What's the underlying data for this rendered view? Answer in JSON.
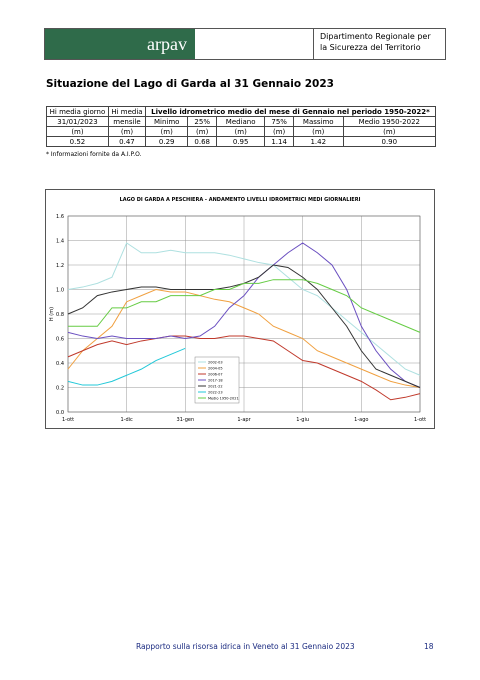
{
  "header": {
    "logo_text": "arpav",
    "department_lines": [
      "Dipartimento Regionale per",
      "la Sicurezza del Territorio"
    ]
  },
  "title": "Situazione del Lago di Garda al 31 Gennaio 2023",
  "table": {
    "rows": [
      [
        "Hi media giorno",
        "Hi media",
        "Livello idrometrico medio del mese di Gennaio nel periodo 1950-2022*"
      ],
      [
        "31/01/2023",
        "mensile",
        "Minimo",
        "25%",
        "Mediano",
        "75%",
        "Massimo",
        "Medio 1950-2022"
      ],
      [
        "(m)",
        "(m)",
        "(m)",
        "(m)",
        "(m)",
        "(m)",
        "(m)",
        "(m)"
      ],
      [
        "0.52",
        "0.47",
        "0.29",
        "0.68",
        "0.95",
        "1.14",
        "1.42",
        "0.90"
      ]
    ]
  },
  "footnote": "* Informazioni fornite da A.I.P.O.",
  "chart_data": {
    "type": "line",
    "title": "LAGO DI GARDA A PESCHIERA - ANDAMENTO LIVELLI IDROMETRICI MEDI GIORNALIERI",
    "ylabel": "H (m)",
    "categories": [
      "1-ott",
      null,
      null,
      null,
      "1-dic",
      null,
      null,
      null,
      "31-gen",
      null,
      null,
      null,
      "1-apr",
      null,
      null,
      null,
      "1-giu",
      null,
      null,
      null,
      "1-ago",
      null,
      null,
      null,
      "1-ott"
    ],
    "ylim": [
      0,
      1.6
    ],
    "yticks": [
      {
        "value": 0,
        "label": "0.0"
      },
      0.2,
      0.4,
      0.6,
      0.8,
      {
        "value": 1,
        "label": "1.0"
      },
      1.2,
      1.4,
      1.6
    ],
    "grid": true,
    "series": [
      {
        "name": "2002-03",
        "color": "#aee0e0",
        "values": [
          1.0,
          1.02,
          1.05,
          1.1,
          1.38,
          1.3,
          1.3,
          1.32,
          1.3,
          1.3,
          1.3,
          1.28,
          1.25,
          1.22,
          1.2,
          1.1,
          1.0,
          0.95,
          0.85,
          0.75,
          0.65,
          0.55,
          0.45,
          0.35,
          0.3
        ]
      },
      {
        "name": "2004-05",
        "color": "#f0a040",
        "values": [
          0.35,
          0.5,
          0.6,
          0.7,
          0.9,
          0.95,
          1.0,
          0.98,
          0.98,
          0.95,
          0.92,
          0.9,
          0.85,
          0.8,
          0.7,
          0.65,
          0.6,
          0.5,
          0.45,
          0.4,
          0.35,
          0.3,
          0.25,
          0.22,
          0.2
        ]
      },
      {
        "name": "2006-07",
        "color": "#c0392b",
        "values": [
          0.45,
          0.5,
          0.55,
          0.58,
          0.55,
          0.58,
          0.6,
          0.62,
          0.62,
          0.6,
          0.6,
          0.62,
          0.62,
          0.6,
          0.58,
          0.5,
          0.42,
          0.4,
          0.35,
          0.3,
          0.25,
          0.18,
          0.1,
          0.12,
          0.15
        ]
      },
      {
        "name": "2017-18",
        "color": "#6a4fc0",
        "values": [
          0.65,
          0.62,
          0.6,
          0.62,
          0.6,
          0.6,
          0.6,
          0.62,
          0.6,
          0.62,
          0.7,
          0.85,
          0.95,
          1.1,
          1.2,
          1.3,
          1.38,
          1.3,
          1.2,
          1.0,
          0.7,
          0.5,
          0.35,
          0.25,
          0.2
        ]
      },
      {
        "name": "2021-22",
        "color": "#333333",
        "values": [
          0.8,
          0.85,
          0.95,
          0.98,
          1.0,
          1.02,
          1.02,
          1.0,
          1.0,
          1.0,
          1.0,
          1.02,
          1.05,
          1.1,
          1.2,
          1.18,
          1.1,
          1.0,
          0.85,
          0.7,
          0.5,
          0.35,
          0.3,
          0.25,
          0.2
        ]
      },
      {
        "name": "2022-23",
        "color": "#22c8d8",
        "values": [
          0.25,
          0.22,
          0.22,
          0.25,
          0.3,
          0.35,
          0.42,
          0.47,
          0.52,
          null,
          null,
          null,
          null,
          null,
          null,
          null,
          null,
          null,
          null,
          null,
          null,
          null,
          null,
          null,
          null
        ]
      },
      {
        "name": "Medio 1950-2021",
        "color": "#66cc44",
        "values": [
          0.7,
          0.7,
          0.7,
          0.85,
          0.85,
          0.9,
          0.9,
          0.95,
          0.95,
          0.95,
          1.0,
          1.0,
          1.05,
          1.05,
          1.08,
          1.08,
          1.08,
          1.05,
          1.0,
          0.95,
          0.85,
          0.8,
          0.75,
          0.7,
          0.65
        ]
      }
    ]
  },
  "footer": {
    "text": "Rapporto sulla risorsa idrica in Veneto al 31 Gennaio 2023",
    "page": "18"
  }
}
